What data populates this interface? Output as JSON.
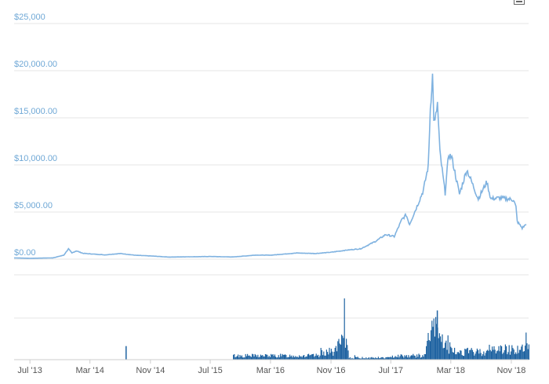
{
  "chart_data": {
    "type": "line",
    "title": "",
    "xlabel": "",
    "ylabel": "",
    "price_axis": {
      "ylim": [
        0,
        25000
      ],
      "tick_labels": [
        {
          "value": 25000,
          "label": "$25,000"
        },
        {
          "value": 20000,
          "label": "$20,000.00"
        },
        {
          "value": 15000,
          "label": "$15,000.00"
        },
        {
          "value": 10000,
          "label": "$10,000.00"
        },
        {
          "value": 5000,
          "label": "$5,000.00"
        },
        {
          "value": 0,
          "label": "$0.00"
        }
      ]
    },
    "x_ticks": [
      {
        "date": "2013-07-01",
        "label": "Jul '13"
      },
      {
        "date": "2014-03-01",
        "label": "Mar '14"
      },
      {
        "date": "2014-11-01",
        "label": "Nov '14"
      },
      {
        "date": "2015-07-01",
        "label": "Jul '15"
      },
      {
        "date": "2016-03-01",
        "label": "Mar '16"
      },
      {
        "date": "2016-11-01",
        "label": "Nov '16"
      },
      {
        "date": "2017-07-01",
        "label": "Jul '17"
      },
      {
        "date": "2018-03-01",
        "label": "Mar '18"
      },
      {
        "date": "2018-11-01",
        "label": "Nov '18"
      }
    ],
    "xlim": [
      "2013-04-28",
      "2019-01-10"
    ],
    "grid": true,
    "series": [
      {
        "color": "#7fb2e0",
        "x": [
          "2013-04-28",
          "2013-07-01",
          "2013-10-01",
          "2013-11-15",
          "2013-12-04",
          "2013-12-18",
          "2014-01-05",
          "2014-02-01",
          "2014-03-01",
          "2014-05-01",
          "2014-07-01",
          "2014-09-01",
          "2014-11-01",
          "2015-01-15",
          "2015-04-01",
          "2015-07-01",
          "2015-10-01",
          "2016-01-01",
          "2016-03-01",
          "2016-06-15",
          "2016-09-01",
          "2016-11-01",
          "2017-01-01",
          "2017-03-01",
          "2017-05-01",
          "2017-06-10",
          "2017-07-15",
          "2017-08-15",
          "2017-09-01",
          "2017-09-15",
          "2017-10-15",
          "2017-11-10",
          "2017-11-30",
          "2017-12-08",
          "2017-12-17",
          "2017-12-22",
          "2017-12-27",
          "2018-01-06",
          "2018-01-16",
          "2018-02-06",
          "2018-02-20",
          "2018-03-05",
          "2018-04-05",
          "2018-05-05",
          "2018-06-20",
          "2018-07-25",
          "2018-08-10",
          "2018-09-15",
          "2018-10-15",
          "2018-11-10",
          "2018-11-20",
          "2018-11-25",
          "2018-12-15",
          "2018-12-31"
        ],
        "values": [
          130,
          90,
          130,
          420,
          1100,
          650,
          880,
          620,
          560,
          450,
          600,
          410,
          340,
          220,
          250,
          280,
          230,
          430,
          420,
          650,
          600,
          730,
          950,
          1100,
          1900,
          2600,
          2400,
          4200,
          4700,
          3700,
          5600,
          7300,
          9900,
          16000,
          19500,
          15000,
          14500,
          16500,
          11300,
          7000,
          11100,
          10800,
          6900,
          9500,
          6400,
          8200,
          6400,
          6500,
          6400,
          6300,
          5500,
          4000,
          3300,
          3700
        ]
      }
    ],
    "volume": {
      "color": "#1f63a1",
      "note_units": "relative"
    }
  }
}
